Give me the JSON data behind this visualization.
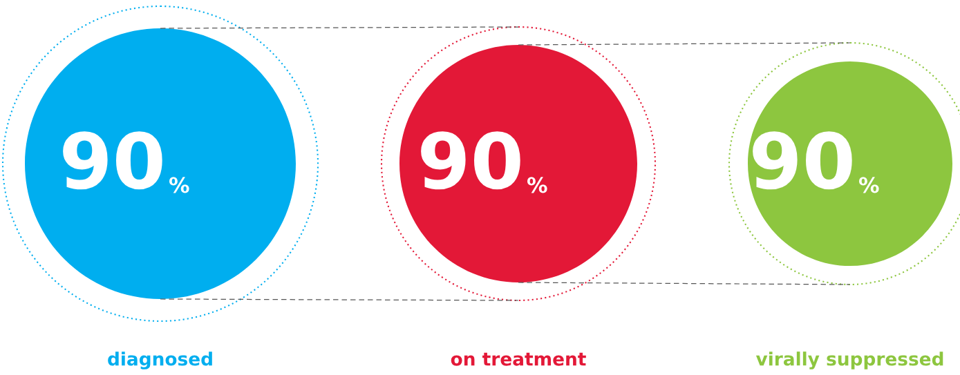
{
  "chart_data": {
    "type": "other",
    "categories": [
      "diagnosed",
      "on treatment",
      "virally suppressed"
    ],
    "values": [
      90,
      90,
      90
    ],
    "value_labels": [
      "90%",
      "90%",
      "90%"
    ],
    "colors": [
      "#00aeef",
      "#e31837",
      "#8dc63f"
    ]
  }
}
